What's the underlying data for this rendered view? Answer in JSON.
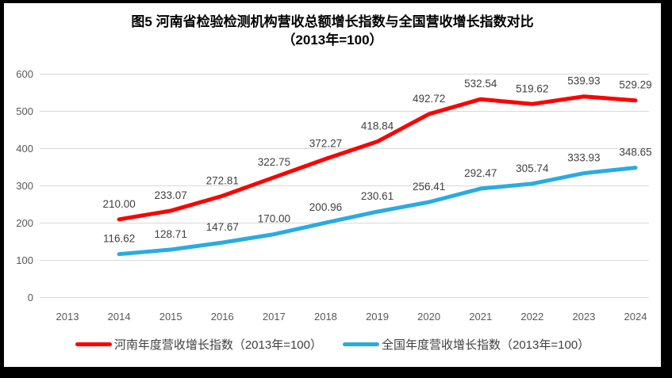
{
  "title": {
    "line1": "图5  河南省检验检测机构营收总额增长指数与全国营收增长指数对比",
    "line2": "（2013年=100）"
  },
  "chart_data": {
    "type": "line",
    "categories": [
      "2013",
      "2014",
      "2015",
      "2016",
      "2017",
      "2018",
      "2019",
      "2020",
      "2021",
      "2022",
      "2023",
      "2024"
    ],
    "series": [
      {
        "name": "河南年度营收增长指数（2013年=100）",
        "color": "#FF0000",
        "values": [
          null,
          210.0,
          233.07,
          272.81,
          322.75,
          372.27,
          418.84,
          492.72,
          532.54,
          519.62,
          539.93,
          529.29
        ]
      },
      {
        "name": "全国年度营收增长指数（2013年=100）",
        "color": "#29ABE2",
        "values": [
          null,
          116.62,
          128.71,
          147.67,
          170.0,
          200.96,
          230.61,
          256.41,
          292.47,
          305.74,
          333.93,
          348.65
        ]
      }
    ],
    "ylim": [
      0,
      600
    ],
    "yticks": [
      0,
      100,
      200,
      300,
      400,
      500,
      600
    ],
    "grid": true,
    "data_labels": true,
    "data_label_decimals": 2,
    "legend_position": "bottom",
    "colors": {
      "grid": "#D9D9D9",
      "axis_text": "#595959",
      "data_label": "#404040"
    }
  },
  "legend": {
    "items": [
      {
        "label": "河南年度营收增长指数（2013年=100）",
        "color": "#FF0000"
      },
      {
        "label": "全国年度营收增长指数（2013年=100）",
        "color": "#29ABE2"
      }
    ]
  }
}
